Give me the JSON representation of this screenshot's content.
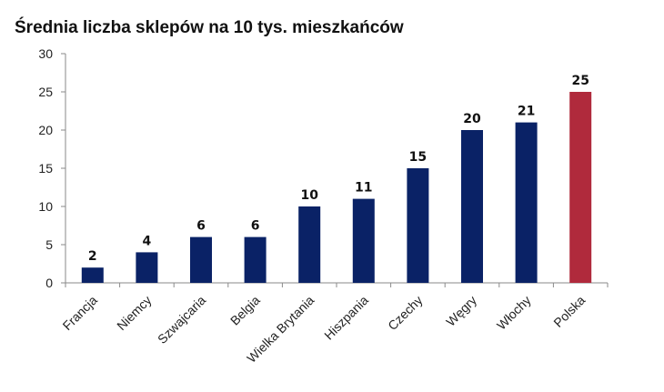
{
  "chart_data": {
    "type": "bar",
    "title": "Średnia liczba sklepów na 10 tys. mieszkańców",
    "categories": [
      "Francja",
      "Niemcy",
      "Szwajcaria",
      "Belgia",
      "Wielka Brytania",
      "Hiszpania",
      "Czechy",
      "Węgry",
      "Włochy",
      "Polska"
    ],
    "values": [
      2,
      4,
      6,
      6,
      10,
      11,
      15,
      20,
      21,
      25
    ],
    "ylim": [
      0,
      30
    ],
    "yticks": [
      0,
      5,
      10,
      15,
      20,
      25,
      30
    ],
    "xlabel": "",
    "ylabel": "",
    "grid": false,
    "colors": {
      "default": "#0a2266",
      "highlight": "#b02a3c",
      "highlight_category": "Polska"
    }
  }
}
